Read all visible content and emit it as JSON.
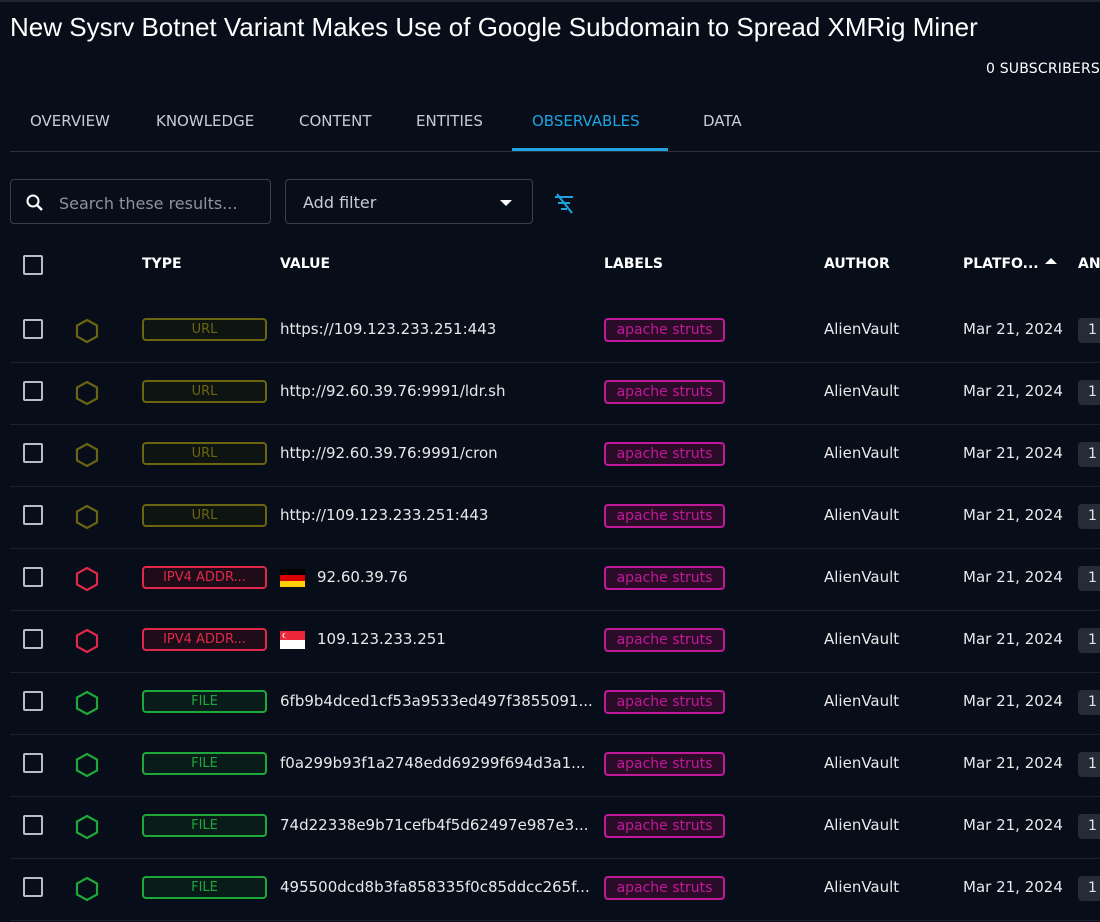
{
  "title": "New Sysrv Botnet Variant Makes Use of Google Subdomain to Spread XMRig Miner",
  "subscribers": "0 SUBSCRIBERS",
  "tabs": [
    {
      "label": "OVERVIEW"
    },
    {
      "label": "KNOWLEDGE"
    },
    {
      "label": "CONTENT"
    },
    {
      "label": "ENTITIES"
    },
    {
      "label": "OBSERVABLES",
      "active": true
    },
    {
      "label": "DATA"
    }
  ],
  "search": {
    "placeholder": "Search these results..."
  },
  "filter": {
    "label": "Add filter"
  },
  "colors": {
    "accent": "#1fa4e0",
    "url": "#6b6410",
    "ipv4": "#e0284a",
    "file": "#1fa83a",
    "label": "#c0199a"
  },
  "columns": {
    "type": "TYPE",
    "value": "VALUE",
    "labels": "LABELS",
    "author": "AUTHOR",
    "platform": "PLATFO...",
    "analyses": "AN"
  },
  "rows": [
    {
      "type": "URL",
      "kind": "url",
      "value": "https://109.123.233.251:443",
      "label": "apache struts",
      "author": "AlienVault",
      "date": "Mar 21, 2024",
      "count": "1"
    },
    {
      "type": "URL",
      "kind": "url",
      "value": "http://92.60.39.76:9991/ldr.sh",
      "label": "apache struts",
      "author": "AlienVault",
      "date": "Mar 21, 2024",
      "count": "1"
    },
    {
      "type": "URL",
      "kind": "url",
      "value": "http://92.60.39.76:9991/cron",
      "label": "apache struts",
      "author": "AlienVault",
      "date": "Mar 21, 2024",
      "count": "1"
    },
    {
      "type": "URL",
      "kind": "url",
      "value": "http://109.123.233.251:443",
      "label": "apache struts",
      "author": "AlienVault",
      "date": "Mar 21, 2024",
      "count": "1"
    },
    {
      "type": "IPV4 ADDR...",
      "kind": "ipv4",
      "flag": "de",
      "value": "92.60.39.76",
      "label": "apache struts",
      "author": "AlienVault",
      "date": "Mar 21, 2024",
      "count": "1"
    },
    {
      "type": "IPV4 ADDR...",
      "kind": "ipv4",
      "flag": "sg",
      "value": "109.123.233.251",
      "label": "apache struts",
      "author": "AlienVault",
      "date": "Mar 21, 2024",
      "count": "1"
    },
    {
      "type": "FILE",
      "kind": "file",
      "value": "6fb9b4dced1cf53a9533ed497f3855091...",
      "label": "apache struts",
      "author": "AlienVault",
      "date": "Mar 21, 2024",
      "count": "1"
    },
    {
      "type": "FILE",
      "kind": "file",
      "value": "f0a299b93f1a2748edd69299f694d3a1...",
      "label": "apache struts",
      "author": "AlienVault",
      "date": "Mar 21, 2024",
      "count": "1"
    },
    {
      "type": "FILE",
      "kind": "file",
      "value": "74d22338e9b71cefb4f5d62497e987e3...",
      "label": "apache struts",
      "author": "AlienVault",
      "date": "Mar 21, 2024",
      "count": "1"
    },
    {
      "type": "FILE",
      "kind": "file",
      "value": "495500dcd8b3fa858335f0c85ddcc265f...",
      "label": "apache struts",
      "author": "AlienVault",
      "date": "Mar 21, 2024",
      "count": "1"
    }
  ]
}
